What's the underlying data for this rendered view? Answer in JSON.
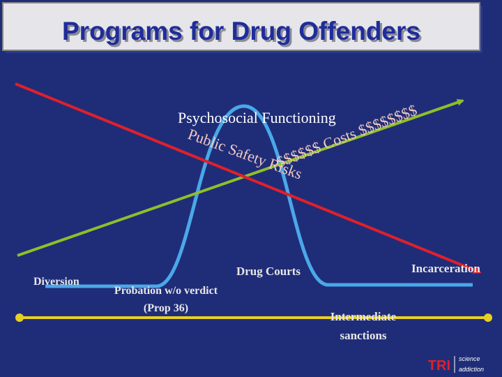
{
  "header": {
    "title": "Programs for Drug Offenders"
  },
  "labels": {
    "psychosocial": "Psychosocial Functioning",
    "public_safety": "Public Safety Risks",
    "costs": "$$$$$$ Costs $$$$$$$$",
    "diversion": "Diversion",
    "probation": [
      "Probation w/o verdict",
      "(Prop 36)"
    ],
    "drug_courts": "Drug Courts",
    "intermediate": [
      "Intermediate",
      "sanctions"
    ],
    "incarceration": "Incarceration"
  },
  "logo": {
    "name": "TRI",
    "lines": [
      "science",
      "addiction"
    ]
  }
}
